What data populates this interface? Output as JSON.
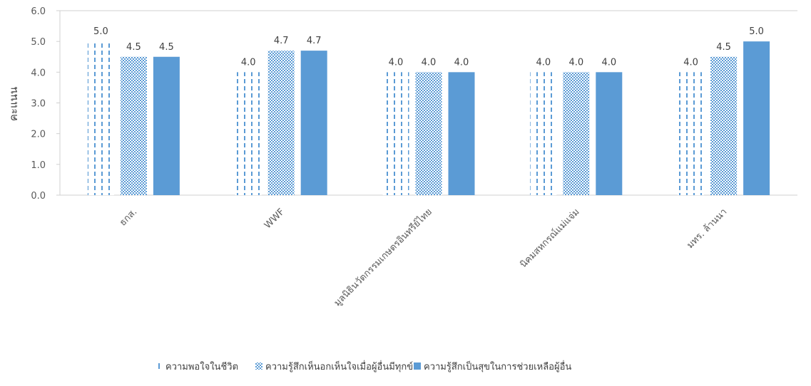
{
  "chart_data": {
    "type": "bar",
    "categories": [
      "ธกส.",
      "WWF",
      "มูลนิธินวัตกรรมเกษตรอินทรีย์ไทย",
      "นิคมสหกรณ์แม่แจ่ม",
      "มทร. ล้านนา"
    ],
    "series": [
      {
        "name": "ความพอใจในชีวิต",
        "values": [
          5.0,
          4.0,
          4.0,
          4.0,
          4.0
        ],
        "labels": [
          "5.0",
          "4.0",
          "4.0",
          "4.0",
          "4.0"
        ],
        "color": "#5b9bd5",
        "pattern": "dashed-vertical"
      },
      {
        "name": "ความรู้สึกเห็นอกเห็นใจเมื่อผู้อื่นมีทุกข์",
        "values": [
          4.5,
          4.7,
          4.0,
          4.0,
          4.5
        ],
        "labels": [
          "4.5",
          "4.7",
          "4.0",
          "4.0",
          "4.5"
        ],
        "color": "#5b9bd5",
        "pattern": "checker"
      },
      {
        "name": "ความรู้สึกเป็นสุขในการช่วยเหลือผู้อื่น",
        "values": [
          4.5,
          4.7,
          4.0,
          4.0,
          5.0
        ],
        "labels": [
          "4.5",
          "4.7",
          "4.0",
          "4.0",
          "5.0"
        ],
        "color": "#5b9bd5",
        "pattern": "solid"
      }
    ],
    "title": "",
    "xlabel": "",
    "ylabel": "คะแนน",
    "ylim": [
      0,
      6
    ],
    "yticks": [
      "0.0",
      "1.0",
      "2.0",
      "3.0",
      "4.0",
      "5.0",
      "6.0"
    ],
    "grid": false,
    "legend": "bottom"
  }
}
